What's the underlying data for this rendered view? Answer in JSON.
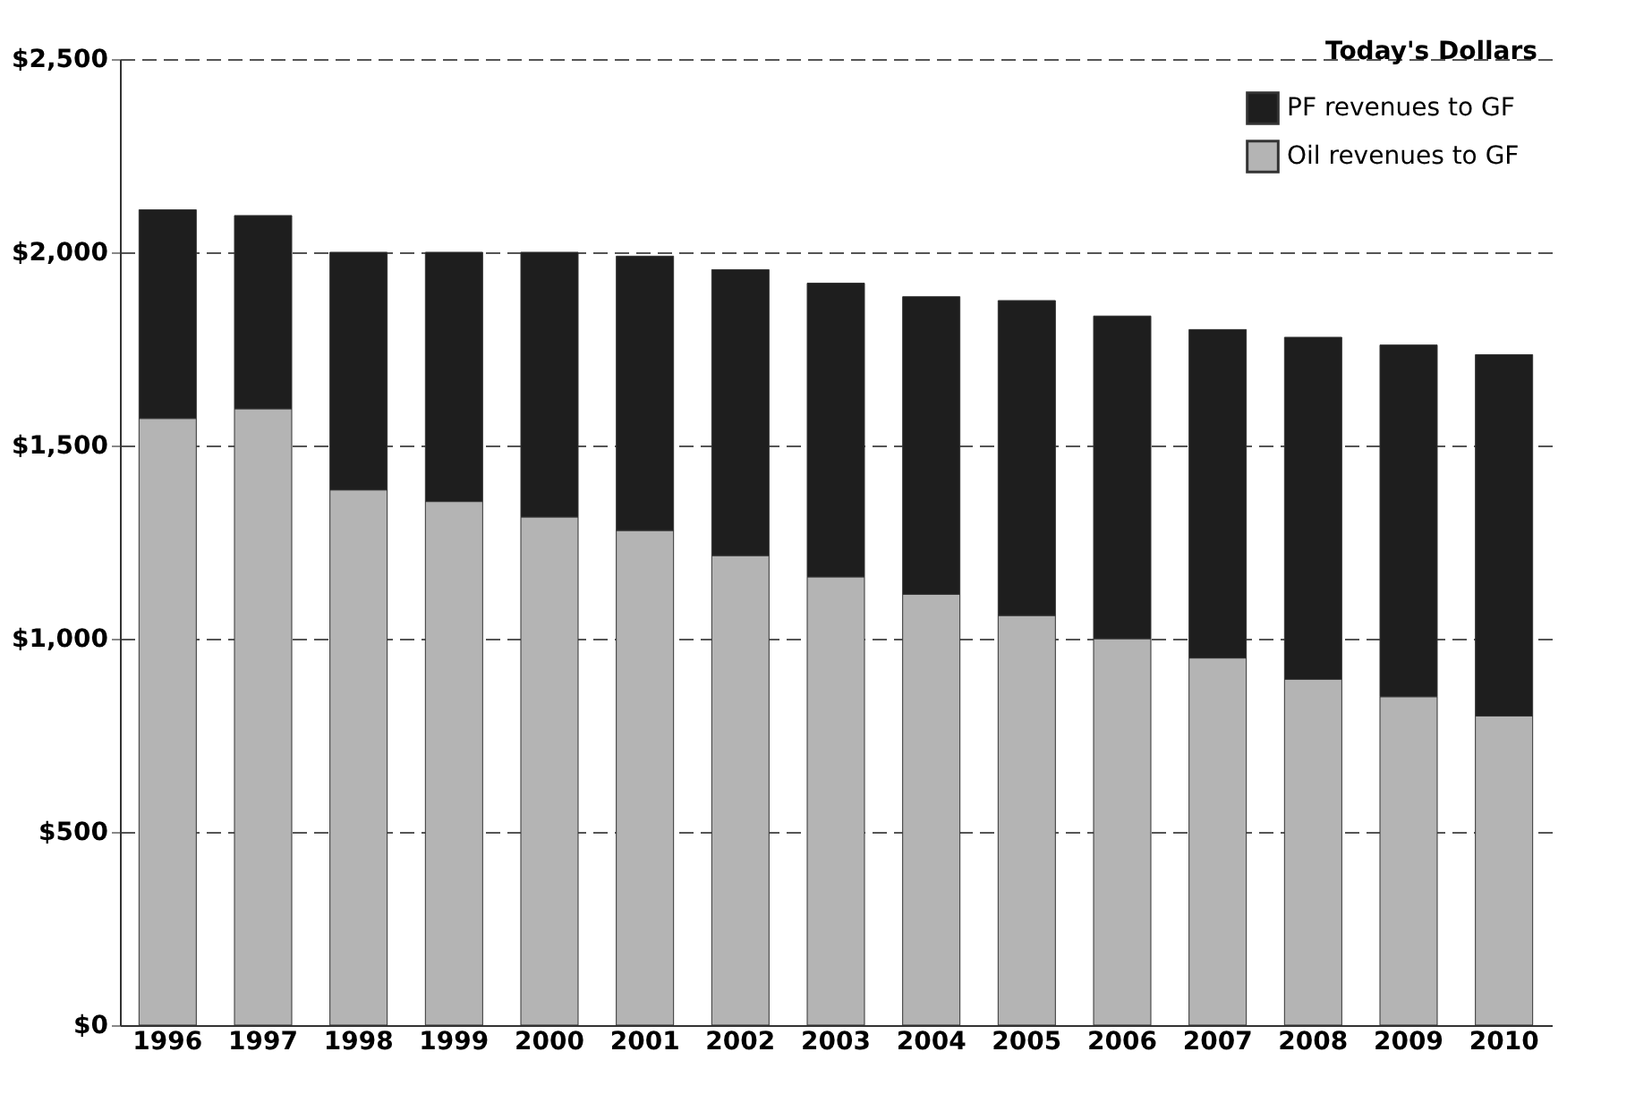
{
  "chart_data": {
    "type": "bar",
    "stacked": true,
    "categories": [
      "1996",
      "1997",
      "1998",
      "1999",
      "2000",
      "2001",
      "2002",
      "2003",
      "2004",
      "2005",
      "2006",
      "2007",
      "2008",
      "2009",
      "2010"
    ],
    "series": [
      {
        "name": "Oil revenues to GF",
        "color": "#b4b4b4",
        "values": [
          1570,
          1595,
          1385,
          1355,
          1315,
          1280,
          1215,
          1160,
          1115,
          1060,
          1000,
          950,
          895,
          850,
          800
        ]
      },
      {
        "name": "PF revenues to GF",
        "color": "#1e1e1e",
        "values": [
          540,
          500,
          615,
          645,
          685,
          710,
          740,
          760,
          770,
          815,
          835,
          850,
          885,
          910,
          935
        ]
      }
    ],
    "ylim": [
      0,
      2500
    ],
    "yticks": [
      {
        "value": 0,
        "label": "$0"
      },
      {
        "value": 500,
        "label": "$500"
      },
      {
        "value": 1000,
        "label": "$1,000"
      },
      {
        "value": 1500,
        "label": "$1,500"
      },
      {
        "value": 2000,
        "label": "$2,000"
      },
      {
        "value": 2500,
        "label": "$2,500"
      }
    ],
    "grid": "y",
    "legend": "top right",
    "annotations": [
      "Today's Dollars"
    ]
  }
}
